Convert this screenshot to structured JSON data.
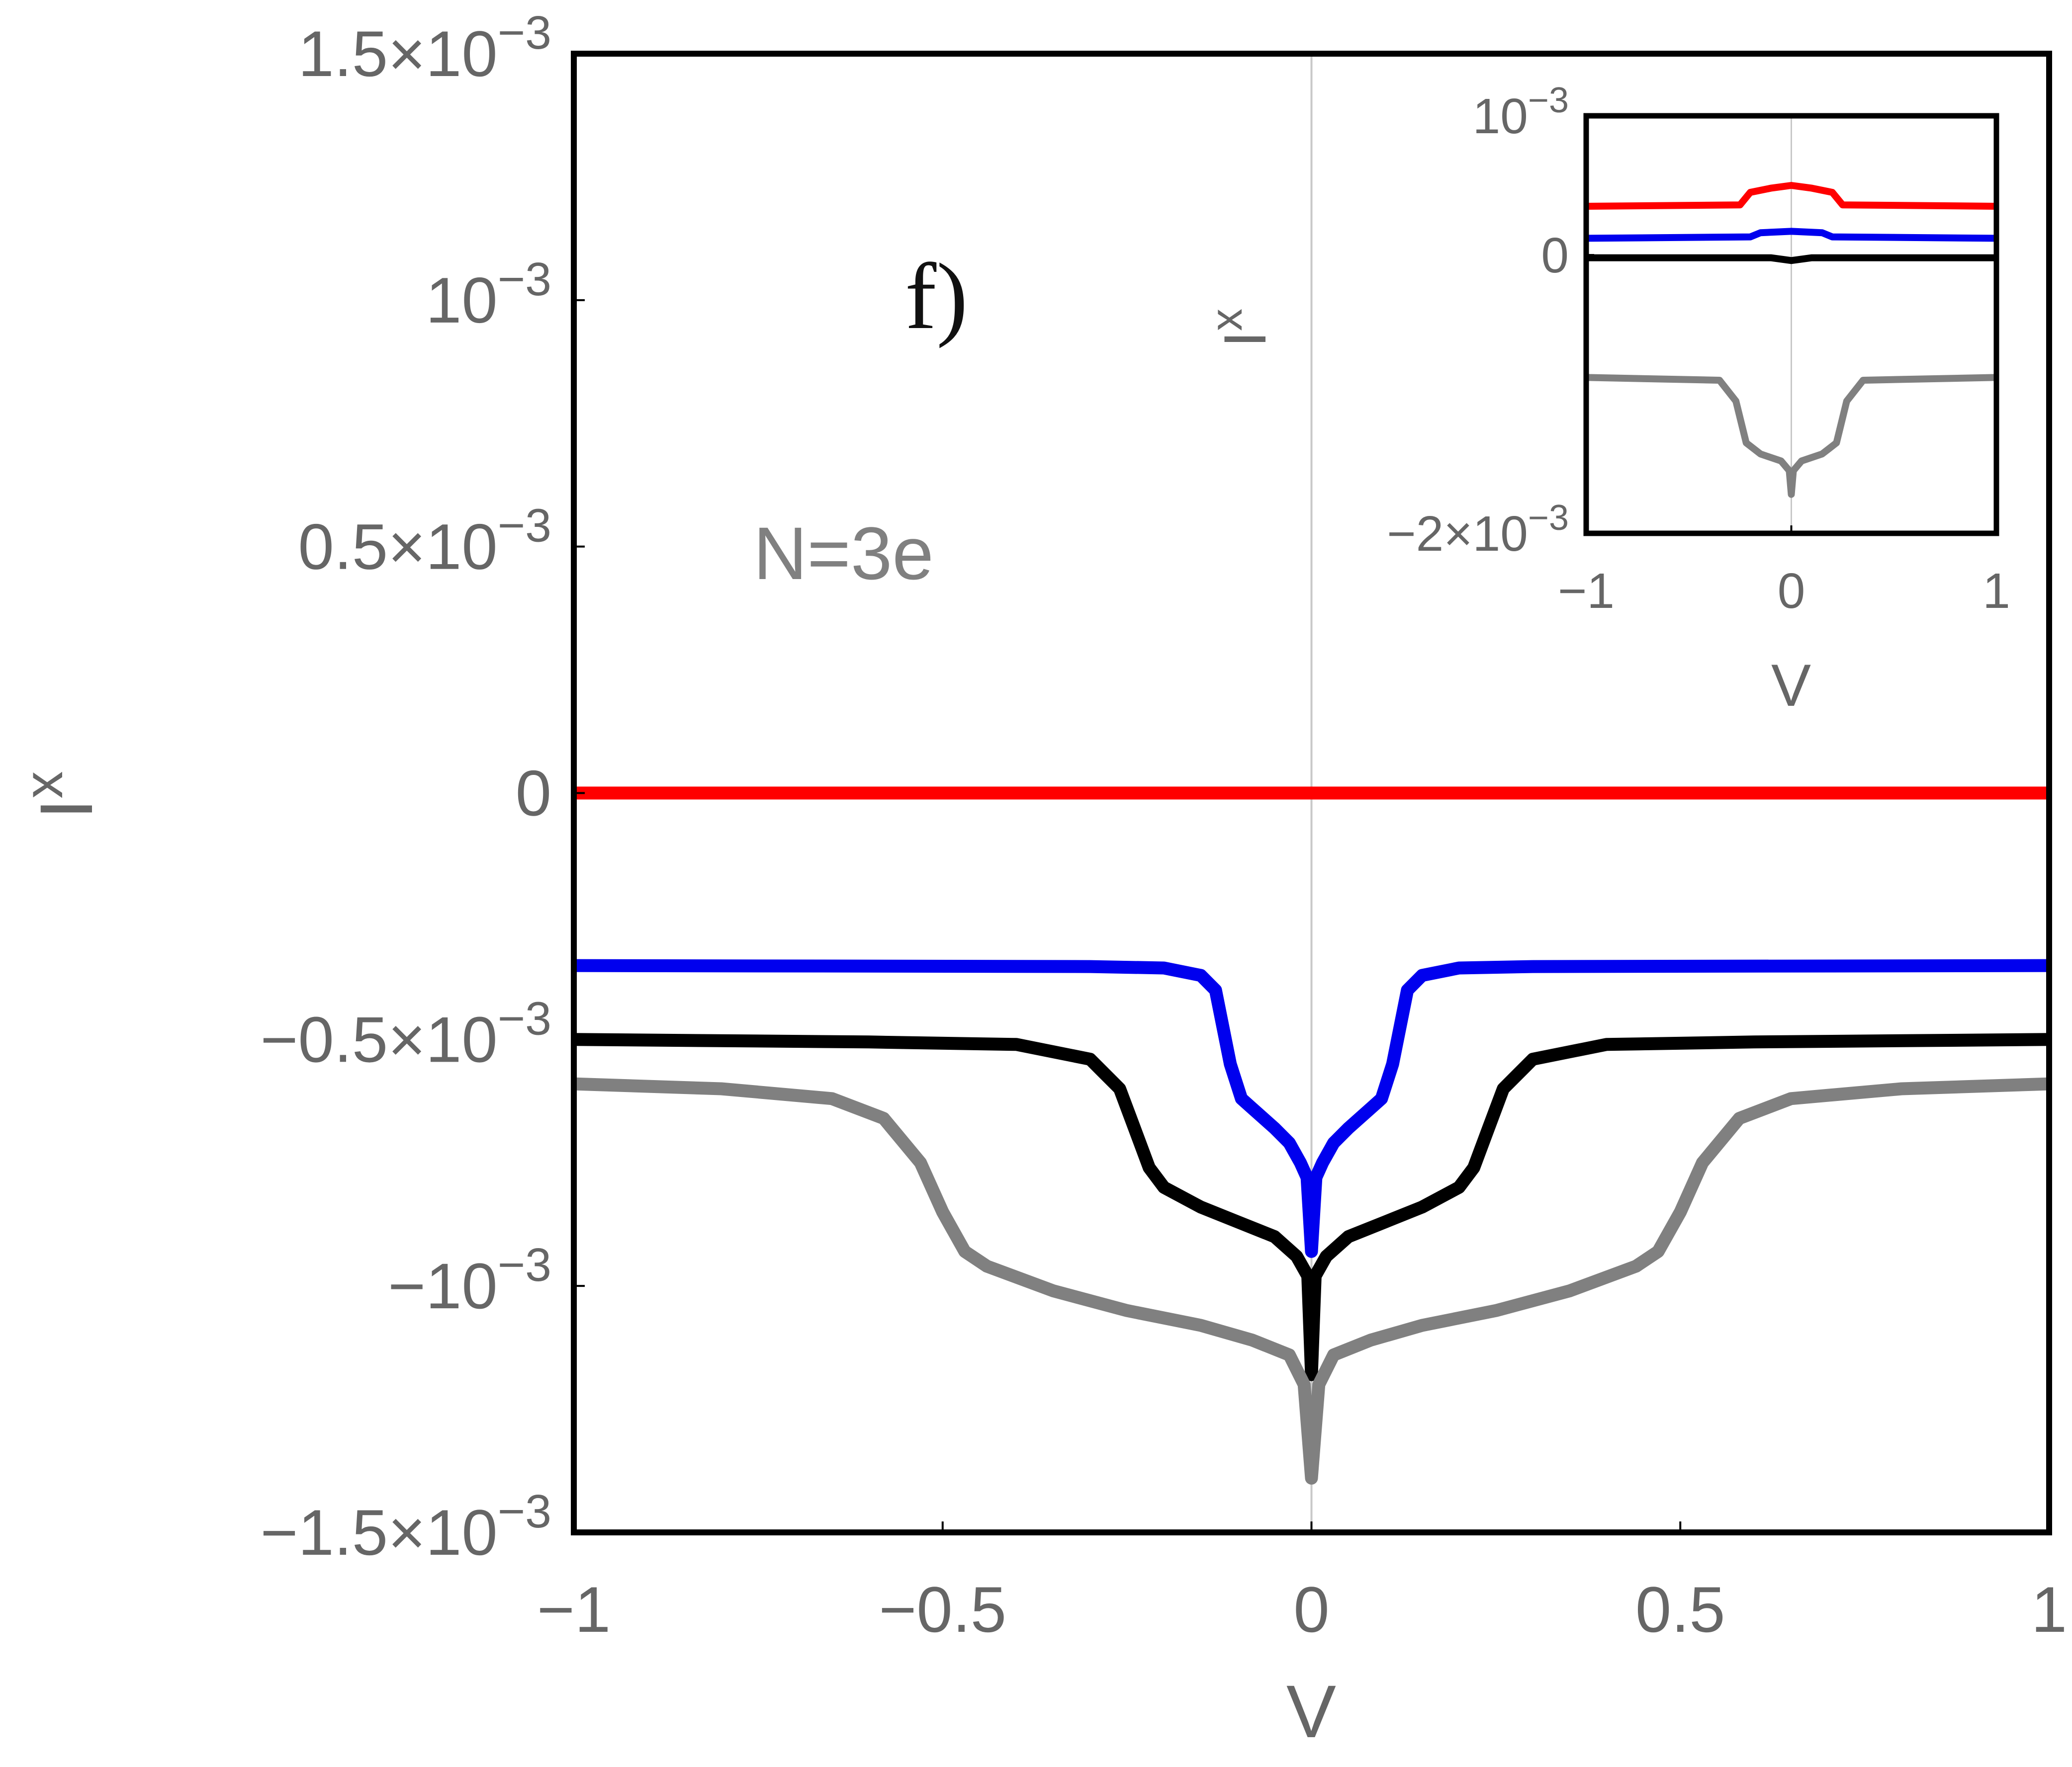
{
  "chart_data": [
    {
      "type": "line",
      "title": "",
      "panel_label": "f)",
      "annotation": "N=3e",
      "xlabel": "V",
      "ylabel": "I",
      "ylabel_sup": "x",
      "xlim": [
        -1,
        1
      ],
      "ylim": [
        -0.0015,
        0.0015
      ],
      "grid": false,
      "x_ticks": [
        -1,
        -0.5,
        0,
        0.5,
        1
      ],
      "x_tick_labels": [
        "−1",
        "−0.5",
        "0",
        "0.5",
        "1"
      ],
      "y_ticks": [
        -0.0015,
        -0.001,
        -0.0005,
        0,
        0.0005,
        0.001,
        0.0015
      ],
      "y_tick_labels": [
        {
          "mantissa": "−1.5×10",
          "exp": "−3"
        },
        {
          "mantissa": "−10",
          "exp": "−3"
        },
        {
          "mantissa": "−0.5×10",
          "exp": "−3"
        },
        {
          "mantissa": "0",
          "exp": ""
        },
        {
          "mantissa": "0.5×10",
          "exp": "−3"
        },
        {
          "mantissa": "10",
          "exp": "−3"
        },
        {
          "mantissa": "1.5×10",
          "exp": "−3"
        }
      ],
      "series": [
        {
          "name": "red",
          "color": "#ff0000",
          "points": [
            [
              -1,
              0
            ],
            [
              1,
              0
            ]
          ]
        },
        {
          "name": "blue",
          "color": "#0000ee",
          "points": [
            [
              -1,
              -0.00035
            ],
            [
              -0.3,
              -0.000352
            ],
            [
              -0.2,
              -0.000355
            ],
            [
              -0.15,
              -0.00037
            ],
            [
              -0.13,
              -0.0004
            ],
            [
              -0.11,
              -0.00055
            ],
            [
              -0.095,
              -0.00062
            ],
            [
              -0.08,
              -0.00064
            ],
            [
              -0.05,
              -0.00068
            ],
            [
              -0.03,
              -0.00071
            ],
            [
              -0.015,
              -0.00075
            ],
            [
              -0.006,
              -0.00078
            ],
            [
              0,
              -0.00093
            ],
            [
              0.006,
              -0.00078
            ],
            [
              0.015,
              -0.00075
            ],
            [
              0.03,
              -0.00071
            ],
            [
              0.05,
              -0.00068
            ],
            [
              0.08,
              -0.00064
            ],
            [
              0.095,
              -0.00062
            ],
            [
              0.11,
              -0.00055
            ],
            [
              0.13,
              -0.0004
            ],
            [
              0.15,
              -0.00037
            ],
            [
              0.2,
              -0.000355
            ],
            [
              0.3,
              -0.000352
            ],
            [
              1,
              -0.00035
            ]
          ]
        },
        {
          "name": "black",
          "color": "#000000",
          "points": [
            [
              -1,
              -0.0005
            ],
            [
              -0.6,
              -0.000505
            ],
            [
              -0.4,
              -0.00051
            ],
            [
              -0.3,
              -0.00054
            ],
            [
              -0.26,
              -0.0006
            ],
            [
              -0.24,
              -0.00068
            ],
            [
              -0.22,
              -0.00076
            ],
            [
              -0.2,
              -0.0008
            ],
            [
              -0.15,
              -0.00084
            ],
            [
              -0.1,
              -0.00087
            ],
            [
              -0.05,
              -0.0009
            ],
            [
              -0.02,
              -0.00094
            ],
            [
              -0.005,
              -0.00098
            ],
            [
              0,
              -0.00118
            ],
            [
              0.005,
              -0.00098
            ],
            [
              0.02,
              -0.00094
            ],
            [
              0.05,
              -0.0009
            ],
            [
              0.1,
              -0.00087
            ],
            [
              0.15,
              -0.00084
            ],
            [
              0.2,
              -0.0008
            ],
            [
              0.22,
              -0.00076
            ],
            [
              0.24,
              -0.00068
            ],
            [
              0.26,
              -0.0006
            ],
            [
              0.3,
              -0.00054
            ],
            [
              0.4,
              -0.00051
            ],
            [
              0.6,
              -0.000505
            ],
            [
              1,
              -0.0005
            ]
          ]
        },
        {
          "name": "gray",
          "color": "#808080",
          "points": [
            [
              -1,
              -0.00059
            ],
            [
              -0.8,
              -0.0006
            ],
            [
              -0.65,
              -0.00062
            ],
            [
              -0.58,
              -0.00066
            ],
            [
              -0.53,
              -0.00075
            ],
            [
              -0.5,
              -0.00085
            ],
            [
              -0.47,
              -0.00093
            ],
            [
              -0.44,
              -0.00096
            ],
            [
              -0.35,
              -0.00101
            ],
            [
              -0.25,
              -0.00105
            ],
            [
              -0.15,
              -0.00108
            ],
            [
              -0.08,
              -0.00111
            ],
            [
              -0.03,
              -0.00114
            ],
            [
              -0.01,
              -0.0012
            ],
            [
              0,
              -0.00139
            ],
            [
              0.01,
              -0.0012
            ],
            [
              0.03,
              -0.00114
            ],
            [
              0.08,
              -0.00111
            ],
            [
              0.15,
              -0.00108
            ],
            [
              0.25,
              -0.00105
            ],
            [
              0.35,
              -0.00101
            ],
            [
              0.44,
              -0.00096
            ],
            [
              0.47,
              -0.00093
            ],
            [
              0.5,
              -0.00085
            ],
            [
              0.53,
              -0.00075
            ],
            [
              0.58,
              -0.00066
            ],
            [
              0.65,
              -0.00062
            ],
            [
              0.8,
              -0.0006
            ],
            [
              1,
              -0.00059
            ]
          ]
        }
      ]
    },
    {
      "type": "line",
      "title": "inset",
      "xlabel": "V",
      "ylabel": "I",
      "ylabel_sup": "x",
      "xlim": [
        -1,
        1
      ],
      "ylim": [
        -0.002,
        0.001
      ],
      "grid": false,
      "x_ticks": [
        -1,
        0,
        1
      ],
      "x_tick_labels": [
        "−1",
        "0",
        "1"
      ],
      "y_ticks": [
        -0.002,
        0,
        0.001
      ],
      "y_tick_labels": [
        {
          "mantissa": "−2×10",
          "exp": "−3"
        },
        {
          "mantissa": "0",
          "exp": ""
        },
        {
          "mantissa": "10",
          "exp": "−3"
        }
      ],
      "series": [
        {
          "name": "red",
          "color": "#ff0000",
          "points": [
            [
              -1,
              0.00035
            ],
            [
              -0.25,
              0.00036
            ],
            [
              -0.2,
              0.00045
            ],
            [
              -0.1,
              0.00048
            ],
            [
              0,
              0.0005
            ],
            [
              0.1,
              0.00048
            ],
            [
              0.2,
              0.00045
            ],
            [
              0.25,
              0.00036
            ],
            [
              1,
              0.00035
            ]
          ]
        },
        {
          "name": "blue",
          "color": "#0000ee",
          "points": [
            [
              -1,
              0.00012
            ],
            [
              -0.2,
              0.00013
            ],
            [
              -0.15,
              0.00016
            ],
            [
              0,
              0.00017
            ],
            [
              0.15,
              0.00016
            ],
            [
              0.2,
              0.00013
            ],
            [
              1,
              0.00012
            ]
          ]
        },
        {
          "name": "black",
          "color": "#000000",
          "points": [
            [
              -1,
              -2e-05
            ],
            [
              -0.1,
              -2e-05
            ],
            [
              0,
              -4e-05
            ],
            [
              0.1,
              -2e-05
            ],
            [
              1,
              -2e-05
            ]
          ]
        },
        {
          "name": "gray",
          "color": "#808080",
          "points": [
            [
              -1,
              -0.00088
            ],
            [
              -0.35,
              -0.0009
            ],
            [
              -0.27,
              -0.00105
            ],
            [
              -0.22,
              -0.00135
            ],
            [
              -0.15,
              -0.00143
            ],
            [
              -0.05,
              -0.00148
            ],
            [
              -0.01,
              -0.00155
            ],
            [
              0,
              -0.00172
            ],
            [
              0.01,
              -0.00155
            ],
            [
              0.05,
              -0.00148
            ],
            [
              0.15,
              -0.00143
            ],
            [
              0.22,
              -0.00135
            ],
            [
              0.27,
              -0.00105
            ],
            [
              0.35,
              -0.0009
            ],
            [
              1,
              -0.00088
            ]
          ]
        }
      ]
    }
  ]
}
